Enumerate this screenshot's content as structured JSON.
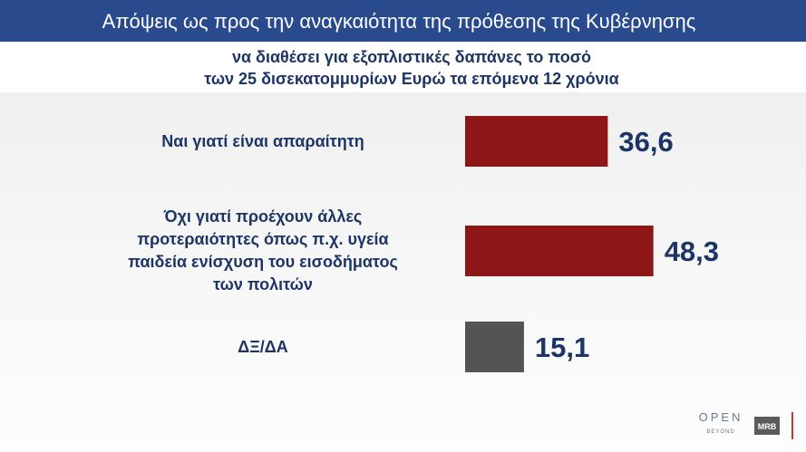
{
  "chart_data": {
    "type": "bar",
    "orientation": "horizontal",
    "title": "Απόψεις ως προς  την αναγκαιότητα της πρόθεσης της Κυβέρνησης",
    "subtitle": [
      "να διαθέσει για εξοπλιστικές δαπάνες το ποσό",
      "των 25 δισεκατομμυρίων Ευρώ τα επόμενα 12 χρόνια"
    ],
    "categories": [
      "Ναι γιατί είναι απαραίτητη",
      "Όχι γιατί προέχουν άλλες προτεραιότητες όπως π.χ. υγεία παιδεία ενίσχυση του εισοδήματος των πολιτών",
      "ΔΞ/ΔΑ"
    ],
    "values": [
      36.6,
      48.3,
      15.1
    ],
    "value_labels": [
      "36,6",
      "48,3",
      "15,1"
    ],
    "colors": [
      "#8e1616",
      "#8e1616",
      "#545454"
    ],
    "logos": [
      "OPEN",
      "BEYOND",
      "MRB"
    ]
  }
}
